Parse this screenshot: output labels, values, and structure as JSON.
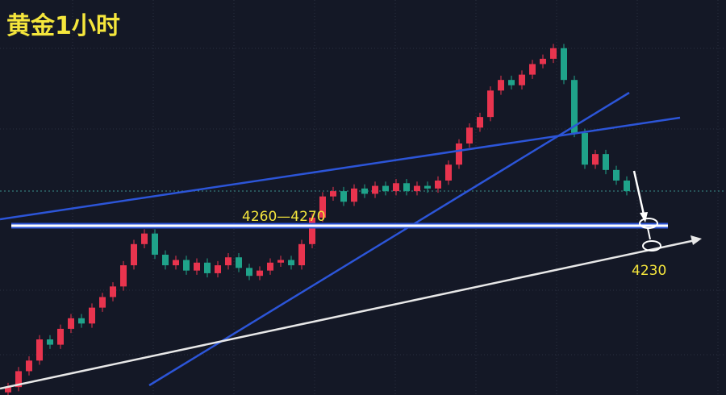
{
  "chart_data": {
    "type": "candlestick",
    "title": "黄金1小时",
    "annotations": [
      "4260—4270",
      "4230"
    ],
    "up_color": "#e8344e",
    "down_color": "#1fa38a",
    "ylim": [
      3945,
      4691
    ],
    "ohlc": [
      [
        3950,
        3968,
        3942,
        3960
      ],
      [
        3960,
        3998,
        3952,
        3990
      ],
      [
        3990,
        4018,
        3982,
        4010
      ],
      [
        4010,
        4058,
        4002,
        4050
      ],
      [
        4050,
        4058,
        4032,
        4040
      ],
      [
        4040,
        4078,
        4032,
        4070
      ],
      [
        4070,
        4098,
        4062,
        4090
      ],
      [
        4090,
        4098,
        4072,
        4080
      ],
      [
        4080,
        4118,
        4072,
        4110
      ],
      [
        4110,
        4138,
        4102,
        4130
      ],
      [
        4130,
        4158,
        4122,
        4150
      ],
      [
        4150,
        4198,
        4142,
        4190
      ],
      [
        4190,
        4238,
        4182,
        4230
      ],
      [
        4230,
        4258,
        4222,
        4250
      ],
      [
        4250,
        4258,
        4202,
        4210
      ],
      [
        4210,
        4218,
        4182,
        4190
      ],
      [
        4190,
        4208,
        4182,
        4200
      ],
      [
        4200,
        4208,
        4172,
        4180
      ],
      [
        4180,
        4203,
        4172,
        4195
      ],
      [
        4195,
        4203,
        4167,
        4175
      ],
      [
        4175,
        4198,
        4167,
        4190
      ],
      [
        4190,
        4213,
        4182,
        4205
      ],
      [
        4205,
        4213,
        4177,
        4185
      ],
      [
        4185,
        4193,
        4162,
        4170
      ],
      [
        4170,
        4188,
        4162,
        4180
      ],
      [
        4180,
        4203,
        4172,
        4195
      ],
      [
        4195,
        4208,
        4187,
        4200
      ],
      [
        4200,
        4208,
        4182,
        4190
      ],
      [
        4190,
        4238,
        4182,
        4230
      ],
      [
        4230,
        4288,
        4222,
        4280
      ],
      [
        4280,
        4328,
        4272,
        4320
      ],
      [
        4320,
        4338,
        4312,
        4330
      ],
      [
        4330,
        4338,
        4302,
        4310
      ],
      [
        4310,
        4343,
        4302,
        4335
      ],
      [
        4335,
        4343,
        4317,
        4325
      ],
      [
        4325,
        4348,
        4317,
        4340
      ],
      [
        4340,
        4348,
        4322,
        4330
      ],
      [
        4330,
        4353,
        4322,
        4345
      ],
      [
        4345,
        4353,
        4322,
        4330
      ],
      [
        4330,
        4348,
        4322,
        4340
      ],
      [
        4340,
        4348,
        4327,
        4335
      ],
      [
        4335,
        4358,
        4327,
        4350
      ],
      [
        4350,
        4388,
        4342,
        4380
      ],
      [
        4380,
        4428,
        4372,
        4420
      ],
      [
        4420,
        4458,
        4412,
        4450
      ],
      [
        4450,
        4478,
        4442,
        4470
      ],
      [
        4470,
        4528,
        4462,
        4520
      ],
      [
        4520,
        4548,
        4512,
        4540
      ],
      [
        4540,
        4548,
        4522,
        4530
      ],
      [
        4530,
        4558,
        4522,
        4550
      ],
      [
        4550,
        4578,
        4542,
        4570
      ],
      [
        4570,
        4588,
        4562,
        4580
      ],
      [
        4580,
        4608,
        4572,
        4600
      ],
      [
        4600,
        4608,
        4532,
        4540
      ],
      [
        4540,
        4548,
        4432,
        4440
      ],
      [
        4440,
        4448,
        4372,
        4380
      ],
      [
        4380,
        4408,
        4372,
        4400
      ],
      [
        4400,
        4408,
        4362,
        4370
      ],
      [
        4370,
        4378,
        4342,
        4350
      ],
      [
        4350,
        4358,
        4322,
        4330
      ]
    ]
  }
}
